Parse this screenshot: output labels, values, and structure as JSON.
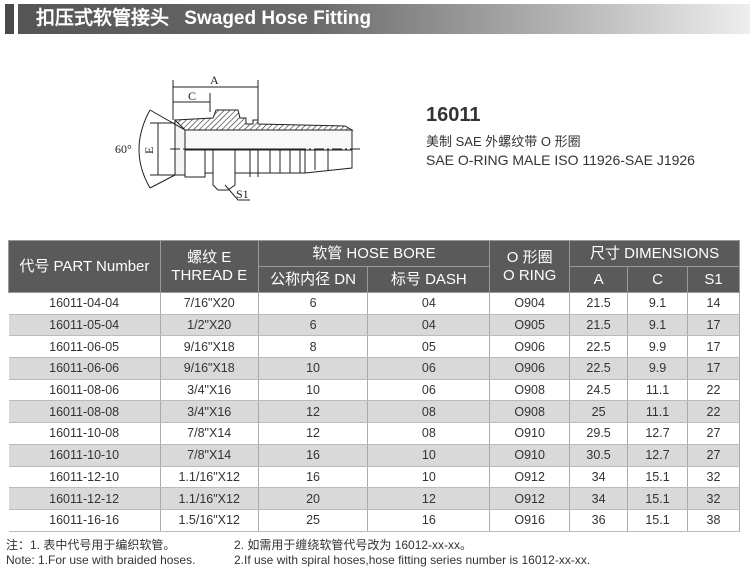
{
  "header": {
    "title_cn": "扣压式软管接头",
    "title_en": "Swaged Hose Fitting"
  },
  "drawing": {
    "labels": {
      "a": "A",
      "c": "C",
      "e": "E",
      "angle": "60°",
      "s1": "S1"
    }
  },
  "product": {
    "number": "16011",
    "desc_cn": "美制 SAE 外螺纹带 O 形圈",
    "desc_en": "SAE O-RING MALE ISO 11926-SAE J1926"
  },
  "table": {
    "headers": {
      "part": "代号 PART Number",
      "thread_cn": "螺纹 E",
      "thread_en": "THREAD E",
      "hose_bore": "软管 HOSE BORE",
      "dn": "公称内径 DN",
      "dash": "标号 DASH",
      "oring_cn": "O 形圈",
      "oring_en": "O RING",
      "dims": "尺寸 DIMENSIONS",
      "a": "A",
      "c": "C",
      "s1": "S1"
    },
    "rows": [
      [
        "16011-04-04",
        "7/16\"X20",
        "6",
        "04",
        "O904",
        "21.5",
        "9.1",
        "14"
      ],
      [
        "16011-05-04",
        "1/2\"X20",
        "6",
        "04",
        "O905",
        "21.5",
        "9.1",
        "17"
      ],
      [
        "16011-06-05",
        "9/16\"X18",
        "8",
        "05",
        "O906",
        "22.5",
        "9.9",
        "17"
      ],
      [
        "16011-06-06",
        "9/16\"X18",
        "10",
        "06",
        "O906",
        "22.5",
        "9.9",
        "17"
      ],
      [
        "16011-08-06",
        "3/4\"X16",
        "10",
        "06",
        "O908",
        "24.5",
        "11.1",
        "22"
      ],
      [
        "16011-08-08",
        "3/4\"X16",
        "12",
        "08",
        "O908",
        "25",
        "11.1",
        "22"
      ],
      [
        "16011-10-08",
        "7/8\"X14",
        "12",
        "08",
        "O910",
        "29.5",
        "12.7",
        "27"
      ],
      [
        "16011-10-10",
        "7/8\"X14",
        "16",
        "10",
        "O910",
        "30.5",
        "12.7",
        "27"
      ],
      [
        "16011-12-10",
        "1.1/16\"X12",
        "16",
        "10",
        "O912",
        "34",
        "15.1",
        "32"
      ],
      [
        "16011-12-12",
        "1.1/16\"X12",
        "20",
        "12",
        "O912",
        "34",
        "15.1",
        "32"
      ],
      [
        "16011-16-16",
        "1.5/16\"X12",
        "25",
        "16",
        "O916",
        "36",
        "15.1",
        "38"
      ]
    ]
  },
  "notes": {
    "cn1": "注：1. 表中代号用于编织软管。",
    "cn2": "2. 如需用于缠绕软管代号改为 16012-xx-xx。",
    "en1": "Note: 1.For use with braided hoses.",
    "en2": "2.If use with spiral hoses,hose fitting series number is 16012-xx-xx."
  }
}
